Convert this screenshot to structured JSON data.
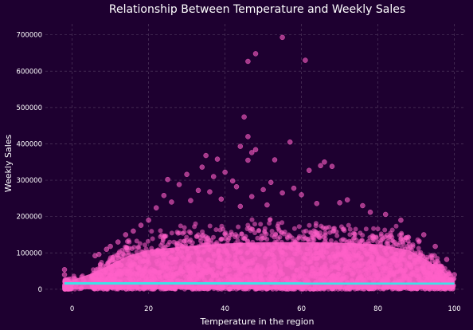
{
  "chart_data": {
    "type": "scatter",
    "title": "Relationship Between Temperature and Weekly Sales",
    "xlabel": "Temperature in the region",
    "ylabel": "Weekly Sales",
    "xlim": [
      -7,
      103
    ],
    "ylim": [
      -20000,
      730000
    ],
    "xticks": [
      0,
      20,
      40,
      60,
      80,
      100
    ],
    "xtick_labels": [
      "0",
      "20",
      "40",
      "60",
      "80",
      "100"
    ],
    "yticks": [
      0,
      100000,
      200000,
      300000,
      400000,
      500000,
      600000,
      700000
    ],
    "ytick_labels": [
      "0",
      "100000",
      "200000",
      "300000",
      "400000",
      "500000",
      "600000",
      "700000"
    ],
    "grid": true,
    "colors": {
      "background": "#1e0030",
      "points": "#ff5fc8",
      "regression": "#3fe0e8"
    },
    "regression_line": {
      "x": [
        -2,
        100
      ],
      "y": [
        16200,
        15800
      ]
    },
    "dense_band": {
      "description_note": "",
      "x_range": [
        -2,
        100
      ],
      "upper_envelope": [
        [
          -2,
          25000
        ],
        [
          5,
          60000
        ],
        [
          8,
          80000
        ],
        [
          10,
          95000
        ],
        [
          15,
          130000
        ],
        [
          20,
          150000
        ],
        [
          30,
          165000
        ],
        [
          40,
          175000
        ],
        [
          50,
          180000
        ],
        [
          60,
          180000
        ],
        [
          70,
          178000
        ],
        [
          80,
          172000
        ],
        [
          88,
          150000
        ],
        [
          93,
          110000
        ],
        [
          97,
          70000
        ],
        [
          100,
          30000
        ]
      ]
    },
    "outliers": [
      {
        "x": 55,
        "y": 693000
      },
      {
        "x": 61,
        "y": 630000
      },
      {
        "x": 48,
        "y": 648000
      },
      {
        "x": 46,
        "y": 627000
      },
      {
        "x": 45,
        "y": 474000
      },
      {
        "x": 46,
        "y": 420000
      },
      {
        "x": 57,
        "y": 405000
      },
      {
        "x": 44,
        "y": 393000
      },
      {
        "x": 48,
        "y": 384000
      },
      {
        "x": 47,
        "y": 376000
      },
      {
        "x": 35,
        "y": 368000
      },
      {
        "x": 38,
        "y": 358000
      },
      {
        "x": 53,
        "y": 356000
      },
      {
        "x": 46,
        "y": 355000
      },
      {
        "x": 66,
        "y": 350000
      },
      {
        "x": 65,
        "y": 340000
      },
      {
        "x": 68,
        "y": 338000
      },
      {
        "x": 34,
        "y": 336000
      },
      {
        "x": 62,
        "y": 327000
      },
      {
        "x": 40,
        "y": 322000
      },
      {
        "x": 30,
        "y": 316000
      },
      {
        "x": 37,
        "y": 310000
      },
      {
        "x": 25,
        "y": 302000
      },
      {
        "x": 42,
        "y": 298000
      },
      {
        "x": 52,
        "y": 294000
      },
      {
        "x": 28,
        "y": 288000
      },
      {
        "x": 43,
        "y": 282000
      },
      {
        "x": 58,
        "y": 278000
      },
      {
        "x": 50,
        "y": 274000
      },
      {
        "x": 33,
        "y": 272000
      },
      {
        "x": 36,
        "y": 268000
      },
      {
        "x": 55,
        "y": 265000
      },
      {
        "x": 60,
        "y": 260000
      },
      {
        "x": 24,
        "y": 258000
      },
      {
        "x": 47,
        "y": 255000
      },
      {
        "x": 72,
        "y": 246000
      },
      {
        "x": 70,
        "y": 238000
      },
      {
        "x": 76,
        "y": 230000
      },
      {
        "x": 64,
        "y": 236000
      },
      {
        "x": 39,
        "y": 248000
      },
      {
        "x": 31,
        "y": 244000
      },
      {
        "x": 26,
        "y": 240000
      },
      {
        "x": 22,
        "y": 224000
      },
      {
        "x": 51,
        "y": 232000
      },
      {
        "x": 44,
        "y": 228000
      },
      {
        "x": 82,
        "y": 206000
      },
      {
        "x": 86,
        "y": 190000
      },
      {
        "x": 78,
        "y": 212000
      },
      {
        "x": 20,
        "y": 190000
      },
      {
        "x": 18,
        "y": 176000
      },
      {
        "x": 16,
        "y": 160000
      },
      {
        "x": 14,
        "y": 150000
      },
      {
        "x": 12,
        "y": 130000
      },
      {
        "x": 10,
        "y": 118000
      },
      {
        "x": 9,
        "y": 110000
      },
      {
        "x": 7,
        "y": 96000
      },
      {
        "x": 6,
        "y": 92000
      },
      {
        "x": -2,
        "y": 54000
      },
      {
        "x": -2,
        "y": 40000
      },
      {
        "x": 92,
        "y": 150000
      },
      {
        "x": 95,
        "y": 118000
      },
      {
        "x": 98,
        "y": 82000
      },
      {
        "x": 100,
        "y": 40000
      }
    ]
  }
}
